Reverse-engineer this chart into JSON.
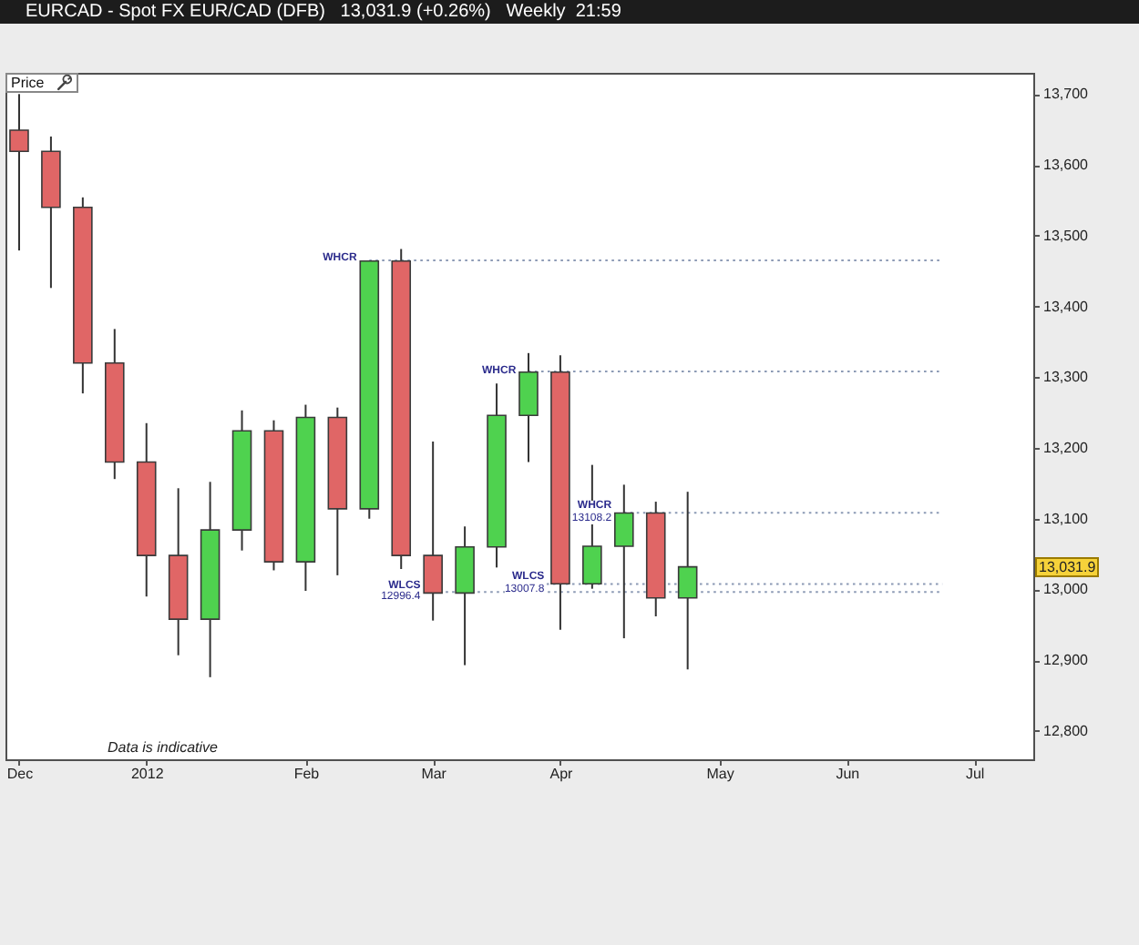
{
  "chart_data": {
    "type": "candlestick",
    "title": "EURCAD - Spot FX EUR/CAD (DFB)   13,031.9 (+0.26%)   Weekly  21:59",
    "x": [
      "2011-12-04",
      "2011-12-11",
      "2011-12-18",
      "2011-12-25",
      "2012-01-01",
      "2012-01-08",
      "2012-01-15",
      "2012-01-22",
      "2012-01-29",
      "2012-02-05",
      "2012-02-12",
      "2012-02-19",
      "2012-02-26",
      "2012-03-04",
      "2012-03-11",
      "2012-03-18",
      "2012-03-25",
      "2012-04-01",
      "2012-04-08",
      "2012-04-15",
      "2012-04-22",
      "2012-04-29"
    ],
    "ohlc": [
      [
        13649,
        13700,
        13479,
        13619
      ],
      [
        13619,
        13640,
        13426,
        13540
      ],
      [
        13540,
        13554,
        13277,
        13320
      ],
      [
        13320,
        13368,
        13156,
        13180
      ],
      [
        13180,
        13235,
        12990,
        13048
      ],
      [
        13048,
        13143,
        12907,
        12958
      ],
      [
        12958,
        13152,
        12876,
        13084
      ],
      [
        13084,
        13253,
        13055,
        13224
      ],
      [
        13224,
        13239,
        13027,
        13039
      ],
      [
        13039,
        13261,
        12998,
        13243
      ],
      [
        13243,
        13257,
        13020,
        13114
      ],
      [
        13114,
        13465,
        13100,
        13464
      ],
      [
        13464,
        13481,
        13029,
        13048
      ],
      [
        13048,
        13209,
        12956,
        12995
      ],
      [
        12995,
        13089,
        12893,
        13060
      ],
      [
        13060,
        13291,
        13031,
        13246
      ],
      [
        13246,
        13334,
        13180,
        13307
      ],
      [
        13307,
        13331,
        12943,
        13008
      ],
      [
        13008,
        13176,
        13001,
        13061
      ],
      [
        13061,
        13148,
        12931,
        13108
      ],
      [
        13108,
        13124,
        12962,
        12988
      ],
      [
        12988,
        13138,
        12887,
        13031.9
      ]
    ],
    "colors": [
      "#e06666",
      "#e06666",
      "#e06666",
      "#e06666",
      "#e06666",
      "#e06666",
      "#4fd24f",
      "#4fd24f",
      "#e06666",
      "#4fd24f",
      "#e06666",
      "#4fd24f",
      "#e06666",
      "#e06666",
      "#4fd24f",
      "#4fd24f",
      "#4fd24f",
      "#e06666",
      "#4fd24f",
      "#4fd24f",
      "#e06666",
      "#4fd24f"
    ],
    "series": [
      {
        "type": "line",
        "name": "WHCR",
        "color": "#8c9ab5",
        "line_style": "dotted",
        "x": [
          "2012-02-19",
          "2012-06-24"
        ],
        "values": [
          13465,
          13465
        ]
      },
      {
        "type": "line",
        "name": "WHCR",
        "color": "#8c9ab5",
        "line_style": "dotted",
        "x": [
          "2012-03-25",
          "2012-06-24"
        ],
        "values": [
          13308,
          13308
        ]
      },
      {
        "type": "line",
        "name": "WHCR",
        "color": "#8c9ab5",
        "line_style": "dotted",
        "x": [
          "2012-04-15",
          "2012-06-24"
        ],
        "values": [
          13108.2,
          13108.2
        ],
        "value_labels": [
          "13108.2",
          null
        ]
      },
      {
        "type": "line",
        "name": "WLCS",
        "color": "#8c9ab5",
        "line_style": "dotted",
        "x": [
          "2012-03-29",
          "2012-06-24"
        ],
        "values": [
          13007.8,
          13007.8
        ],
        "value_labels": [
          "13007.8",
          null
        ]
      },
      {
        "type": "line",
        "name": "WLCS",
        "color": "#8c9ab5",
        "line_style": "dotted",
        "x": [
          "2012-03-04",
          "2012-06-24"
        ],
        "values": [
          12996.4,
          12996.4
        ],
        "value_labels": [
          "12996.4",
          null
        ]
      }
    ],
    "xlim": [
      "2011-12-01",
      "2012-07-14"
    ],
    "xticks": [
      {
        "value": "2011-12-04",
        "label": "Dec"
      },
      {
        "value": "2012-01-01",
        "label": "2012"
      },
      {
        "value": "2012-02-05",
        "label": "Feb"
      },
      {
        "value": "2012-03-04",
        "label": "Mar"
      },
      {
        "value": "2012-04-01",
        "label": "Apr"
      },
      {
        "value": "2012-05-06",
        "label": "May"
      },
      {
        "value": "2012-06-03",
        "label": "Jun"
      },
      {
        "value": "2012-07-01",
        "label": "Jul"
      }
    ],
    "ylim": [
      12760,
      13730
    ],
    "yticks": [
      {
        "value": 12800,
        "label": "12,800"
      },
      {
        "value": 12900,
        "label": "12,900"
      },
      {
        "value": 13000,
        "label": "13,000"
      },
      {
        "value": 13100,
        "label": "13,100"
      },
      {
        "value": 13200,
        "label": "13,200"
      },
      {
        "value": 13300,
        "label": "13,300"
      },
      {
        "value": 13400,
        "label": "13,400"
      },
      {
        "value": 13500,
        "label": "13,500"
      },
      {
        "value": 13600,
        "label": "13,600"
      },
      {
        "value": 13700,
        "label": "13,700"
      }
    ],
    "annotations": [
      "Price",
      "Data is indicative",
      "13,031.9"
    ],
    "grid": false
  }
}
